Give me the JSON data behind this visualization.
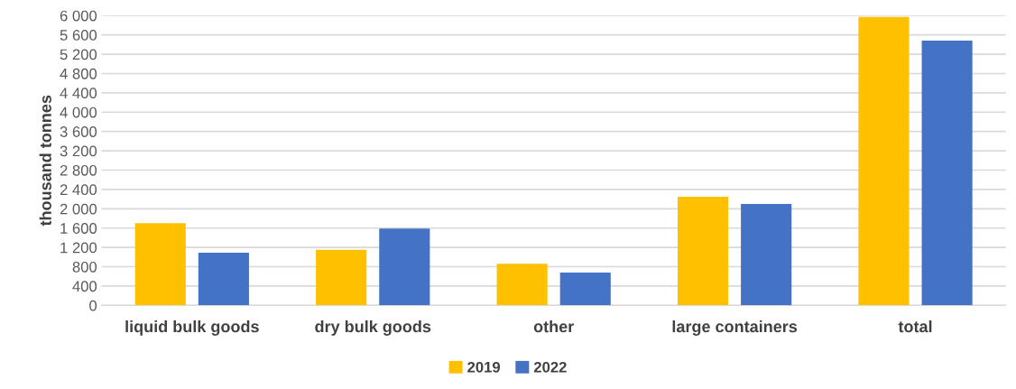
{
  "chart_data": {
    "type": "bar",
    "ylabel": "thousand tonnes",
    "categories": [
      "liquid bulk goods",
      "dry bulk goods",
      "other",
      "large containers",
      "total"
    ],
    "series": [
      {
        "name": "2019",
        "color": "#ffc000",
        "values": [
          1700,
          1150,
          860,
          2250,
          5970
        ]
      },
      {
        "name": "2022",
        "color": "#4472c4",
        "values": [
          1090,
          1590,
          680,
          2100,
          5480
        ]
      }
    ],
    "ylim": [
      0,
      6000
    ],
    "yticks": [
      0,
      400,
      800,
      {
        "value": 1200,
        "label": "1 200"
      },
      {
        "value": 1600,
        "label": "1 600"
      },
      {
        "value": 2000,
        "label": "2 000"
      },
      {
        "value": 2400,
        "label": "2 400"
      },
      {
        "value": 2800,
        "label": "2 800"
      },
      {
        "value": 3200,
        "label": "3 200"
      },
      {
        "value": 3600,
        "label": "3 600"
      },
      {
        "value": 4000,
        "label": "4 000"
      },
      {
        "value": 4400,
        "label": "4 400"
      },
      {
        "value": 4800,
        "label": "4 800"
      },
      {
        "value": 5200,
        "label": "5 200"
      },
      {
        "value": 5600,
        "label": "5 600"
      },
      {
        "value": 6000,
        "label": "6 000"
      }
    ],
    "grid": "y",
    "legend": "bottom"
  }
}
